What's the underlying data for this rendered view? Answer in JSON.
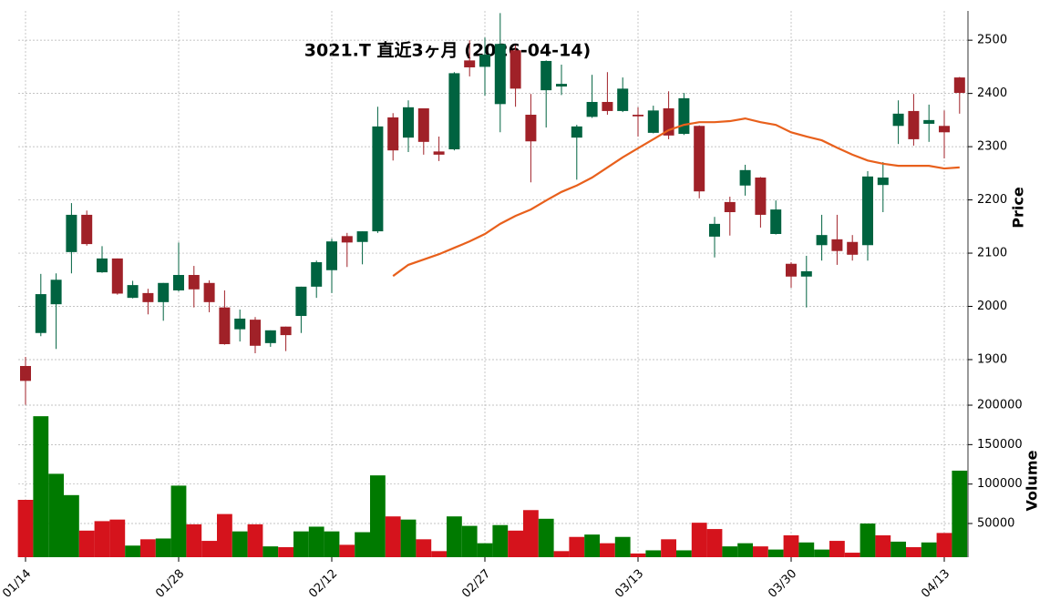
{
  "chart_data": {
    "type": "candlestick",
    "title": "3021.T  直近3ヶ月 (2026-04-14)",
    "categories": [
      "01/14",
      null,
      null,
      null,
      null,
      null,
      null,
      null,
      null,
      null,
      "01/28",
      null,
      null,
      null,
      null,
      null,
      null,
      null,
      null,
      null,
      "02/12",
      null,
      null,
      null,
      null,
      null,
      null,
      null,
      null,
      null,
      "02/27",
      null,
      null,
      null,
      null,
      null,
      null,
      null,
      null,
      null,
      "03/13",
      null,
      null,
      null,
      null,
      null,
      null,
      null,
      null,
      null,
      "03/30",
      null,
      null,
      null,
      null,
      null,
      null,
      null,
      null,
      null,
      "04/13",
      null
    ],
    "open": [
      1888,
      1950,
      2004,
      2102,
      2172,
      2064,
      2090,
      2016,
      2025,
      2008,
      2030,
      2059,
      2044,
      1998,
      1957,
      1975,
      1931,
      1962,
      1982,
      2037,
      2068,
      2132,
      2121,
      2141,
      2355,
      2317,
      2372,
      2291,
      2295,
      2462,
      2450,
      2380,
      2481,
      2360,
      2406,
      2413,
      2317,
      2356,
      2384,
      2367,
      2360,
      2326,
      2372,
      2324,
      2339,
      2131,
      2196,
      2227,
      2242,
      2136,
      2080,
      2056,
      2115,
      2126,
      2121,
      2115,
      2228,
      2339,
      2367,
      2343,
      2339,
      2430
    ],
    "high": [
      1905,
      2061,
      2062,
      2194,
      2180,
      2113,
      2090,
      2048,
      2033,
      2044,
      2120,
      2076,
      2049,
      2030,
      1994,
      1980,
      1955,
      1962,
      2037,
      2086,
      2127,
      2138,
      2141,
      2375,
      2363,
      2387,
      2372,
      2319,
      2440,
      2500,
      2505,
      2551,
      2490,
      2399,
      2462,
      2454,
      2341,
      2435,
      2440,
      2430,
      2374,
      2377,
      2404,
      2401,
      2340,
      2168,
      2206,
      2266,
      2243,
      2199,
      2083,
      2095,
      2172,
      2172,
      2134,
      2254,
      2271,
      2387,
      2399,
      2379,
      2368,
      2431
    ],
    "low": [
      1815,
      1944,
      1920,
      2062,
      2114,
      2063,
      2022,
      2015,
      1985,
      1973,
      2028,
      1998,
      1989,
      1928,
      1934,
      1912,
      1924,
      1916,
      1950,
      2016,
      2025,
      2074,
      2079,
      2138,
      2274,
      2290,
      2285,
      2273,
      2293,
      2432,
      2396,
      2327,
      2375,
      2233,
      2336,
      2397,
      2238,
      2354,
      2360,
      2365,
      2319,
      2325,
      2314,
      2322,
      2203,
      2092,
      2133,
      2208,
      2148,
      2135,
      2035,
      1998,
      2086,
      2078,
      2086,
      2086,
      2177,
      2305,
      2302,
      2309,
      2278,
      2362
    ],
    "close": [
      1860,
      2023,
      2050,
      2172,
      2117,
      2090,
      2024,
      2040,
      2008,
      2044,
      2059,
      2032,
      2008,
      1929,
      1977,
      1926,
      1955,
      1946,
      2037,
      2083,
      2122,
      2120,
      2141,
      2338,
      2293,
      2374,
      2309,
      2285,
      2438,
      2449,
      2473,
      2493,
      2409,
      2310,
      2461,
      2418,
      2338,
      2384,
      2367,
      2409,
      2357,
      2368,
      2321,
      2391,
      2216,
      2155,
      2177,
      2256,
      2172,
      2182,
      2056,
      2066,
      2134,
      2104,
      2097,
      2244,
      2242,
      2362,
      2314,
      2350,
      2327,
      2401
    ],
    "up_color": "#006340",
    "down_color": "#a02128",
    "ma": {
      "color": "#e8601c",
      "values": [
        null,
        null,
        null,
        null,
        null,
        null,
        null,
        null,
        null,
        null,
        null,
        null,
        null,
        null,
        null,
        null,
        null,
        null,
        null,
        null,
        null,
        null,
        null,
        null,
        2057,
        2078,
        2088,
        2098,
        2110,
        2122,
        2136,
        2155,
        2170,
        2182,
        2199,
        2215,
        2227,
        2242,
        2261,
        2280,
        2297,
        2314,
        2331,
        2341,
        2346,
        2346,
        2348,
        2353,
        2346,
        2341,
        2327,
        2319,
        2312,
        2298,
        2285,
        2274,
        2268,
        2264,
        2264,
        2264,
        2259,
        2261
      ]
    },
    "ylabel": "Price",
    "ylim": [
      1823,
      2555
    ],
    "yticks": [
      1900,
      2000,
      2100,
      2200,
      2300,
      2400,
      2500
    ],
    "grid": true,
    "volume": {
      "ylabel": "Volume",
      "up_color": "#007a00",
      "down_color": "#d5131c",
      "values": [
        80000,
        186000,
        113000,
        86000,
        41000,
        53000,
        55000,
        22000,
        30000,
        31000,
        98000,
        49000,
        28000,
        62000,
        40000,
        49000,
        21000,
        20000,
        40000,
        46000,
        40000,
        23000,
        39000,
        111000,
        59000,
        55000,
        30000,
        15000,
        59000,
        47000,
        25000,
        48000,
        41000,
        67000,
        56000,
        15000,
        33000,
        36000,
        25000,
        33000,
        12000,
        16000,
        30000,
        16000,
        51000,
        43000,
        21000,
        25000,
        21000,
        17000,
        35000,
        26000,
        17000,
        28000,
        13000,
        50000,
        35000,
        27000,
        20000,
        26000,
        38000,
        117000
      ],
      "ylim": [
        7300,
        205800
      ],
      "yticks": [
        50000,
        100000,
        150000,
        200000
      ]
    }
  }
}
